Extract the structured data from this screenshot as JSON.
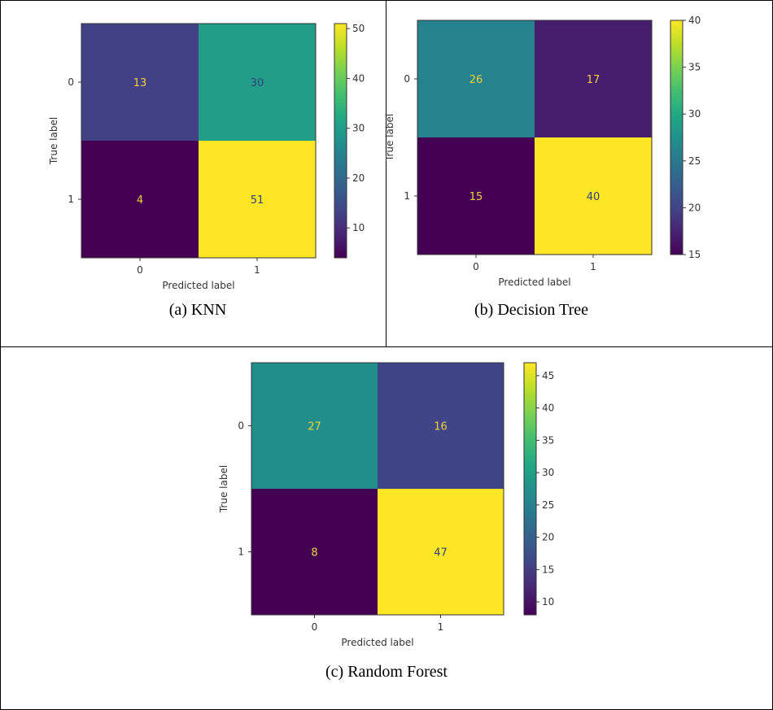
{
  "chart_data": [
    {
      "type": "heatmap",
      "caption": "(a) KNN",
      "xlabel": "Predicted label",
      "ylabel": "True label",
      "x_ticks": [
        "0",
        "1"
      ],
      "y_ticks": [
        "0",
        "1"
      ],
      "matrix": [
        [
          13,
          30
        ],
        [
          4,
          51
        ]
      ],
      "colormap": "viridis",
      "colorbar": {
        "min": 4,
        "max": 51,
        "ticks": [
          10,
          20,
          30,
          40,
          50
        ]
      }
    },
    {
      "type": "heatmap",
      "caption": "(b) Decision Tree",
      "xlabel": "Predicted label",
      "ylabel": "True label",
      "x_ticks": [
        "0",
        "1"
      ],
      "y_ticks": [
        "0",
        "1"
      ],
      "matrix": [
        [
          26,
          17
        ],
        [
          15,
          40
        ]
      ],
      "colormap": "viridis",
      "colorbar": {
        "min": 15,
        "max": 40,
        "ticks": [
          15,
          20,
          25,
          30,
          35,
          40
        ]
      }
    },
    {
      "type": "heatmap",
      "caption": "(c) Random Forest",
      "xlabel": "Predicted label",
      "ylabel": "True label",
      "x_ticks": [
        "0",
        "1"
      ],
      "y_ticks": [
        "0",
        "1"
      ],
      "matrix": [
        [
          27,
          16
        ],
        [
          8,
          47
        ]
      ],
      "colormap": "viridis",
      "colorbar": {
        "min": 8,
        "max": 47,
        "ticks": [
          10,
          15,
          20,
          25,
          30,
          35,
          40,
          45
        ]
      }
    }
  ]
}
